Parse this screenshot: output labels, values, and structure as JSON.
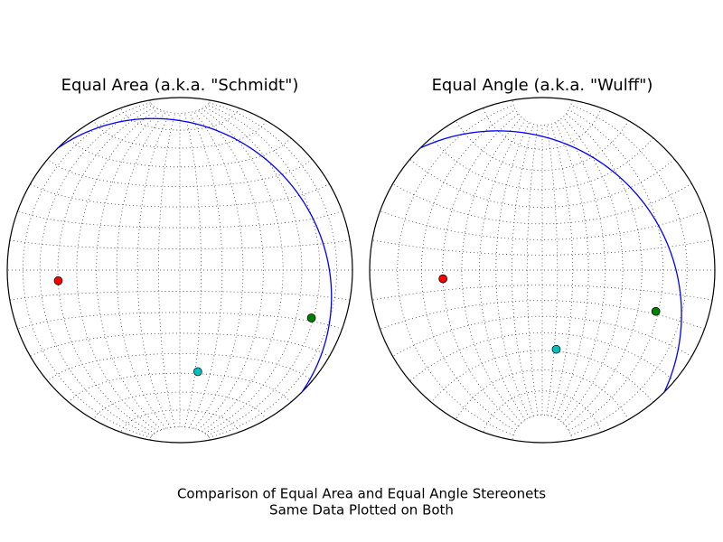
{
  "chart_data": [
    {
      "type": "stereonet",
      "projection": "equal_area",
      "title": "Equal Area (a.k.a. \"Schmidt\")",
      "grid": true,
      "grid_spacing": 10,
      "plane": {
        "strike": 315,
        "dip": 20,
        "color": "#0000ff"
      },
      "points": [
        {
          "plunge": 30,
          "bearing": 265,
          "color": "#ff0000"
        },
        {
          "plunge": 20,
          "bearing": 110,
          "color": "#008000"
        },
        {
          "plunge": 40,
          "bearing": 170,
          "color": "#00bfbf"
        }
      ]
    },
    {
      "type": "stereonet",
      "projection": "equal_angle",
      "title": "Equal Angle (a.k.a. \"Wulff\")",
      "grid": true,
      "grid_spacing": 10,
      "plane": {
        "strike": 315,
        "dip": 20,
        "color": "#0000ff"
      },
      "points": [
        {
          "plunge": 30,
          "bearing": 265,
          "color": "#ff0000"
        },
        {
          "plunge": 20,
          "bearing": 110,
          "color": "#008000"
        },
        {
          "plunge": 40,
          "bearing": 170,
          "color": "#00bfbf"
        }
      ]
    }
  ],
  "caption": [
    "Comparison of Equal Area and Equal Angle Stereonets",
    "Same Data Plotted on Both"
  ]
}
